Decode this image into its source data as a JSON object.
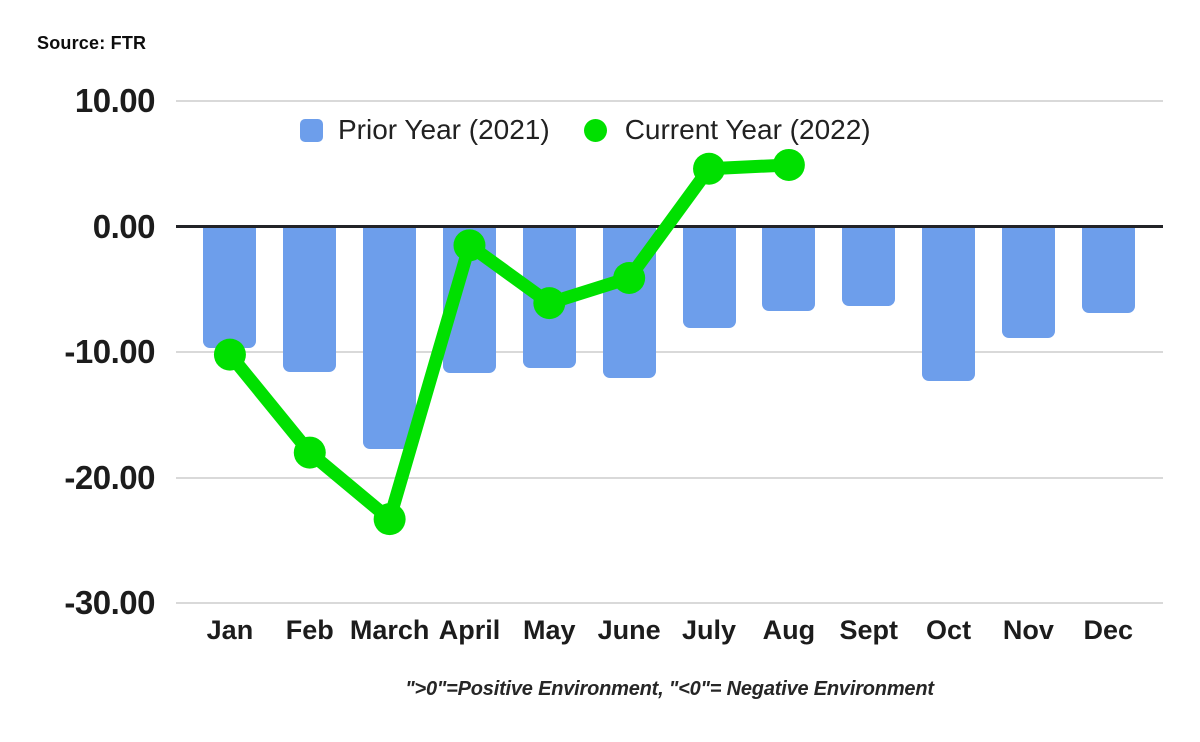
{
  "source_label": "Source: FTR",
  "colors": {
    "background": "#ffffff",
    "bar": "#6d9eeb",
    "line": "#00e000",
    "gridline": "#d9d9d9",
    "zero_line": "#222327",
    "text": "#1c1c1c"
  },
  "chart_data": {
    "type": "combo-bar-line",
    "title": "",
    "categories": [
      "Jan",
      "Feb",
      "March",
      "April",
      "May",
      "June",
      "July",
      "Aug",
      "Sept",
      "Oct",
      "Nov",
      "Dec"
    ],
    "series": [
      {
        "name": "Prior Year (2021)",
        "type": "bar",
        "color": "#6d9eeb",
        "values": [
          -9.7,
          -11.6,
          -17.7,
          -11.7,
          -11.3,
          -12.1,
          -8.1,
          -6.7,
          -6.3,
          -12.3,
          -8.9,
          -6.9
        ]
      },
      {
        "name": "Current Year (2022)",
        "type": "line",
        "color": "#00e000",
        "values": [
          -10.2,
          -18.0,
          -23.3,
          -1.5,
          -6.1,
          -4.1,
          4.6,
          4.9,
          null,
          null,
          null,
          null
        ]
      }
    ],
    "y_axis": {
      "range": [
        -30,
        10
      ],
      "ticks": [
        {
          "label": "10.00",
          "value": 10
        },
        {
          "label": "0.00",
          "value": 0
        },
        {
          "label": "-10.00",
          "value": -10
        },
        {
          "label": "-20.00",
          "value": -20
        },
        {
          "label": "-30.00",
          "value": -30
        }
      ]
    },
    "grid": true,
    "legend_position": "top",
    "footnote": "\">0\"=Positive Environment, \"<0\"= Negative Environment"
  }
}
